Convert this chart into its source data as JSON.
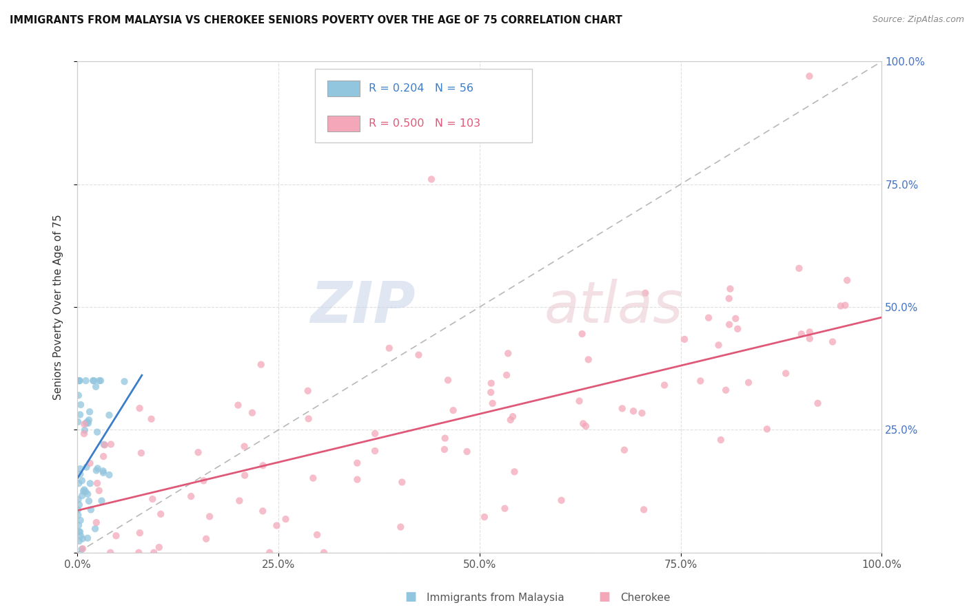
{
  "title": "IMMIGRANTS FROM MALAYSIA VS CHEROKEE SENIORS POVERTY OVER THE AGE OF 75 CORRELATION CHART",
  "source": "Source: ZipAtlas.com",
  "ylabel": "Seniors Poverty Over the Age of 75",
  "blue_R": 0.204,
  "blue_N": 56,
  "pink_R": 0.5,
  "pink_N": 103,
  "blue_color": "#92c5de",
  "pink_color": "#f4a7b9",
  "blue_line_color": "#3a7dc9",
  "pink_line_color": "#e05878",
  "xlim": [
    0,
    1.0
  ],
  "ylim": [
    0,
    1.0
  ],
  "xticks": [
    0.0,
    0.25,
    0.5,
    0.75,
    1.0
  ],
  "xticklabels": [
    "0.0%",
    "25.0%",
    "50.0%",
    "75.0%",
    "100.0%"
  ],
  "yticks": [
    0.0,
    0.25,
    0.5,
    0.75,
    1.0
  ],
  "right_yticklabels": [
    "",
    "25.0%",
    "50.0%",
    "75.0%",
    "100.0%"
  ],
  "right_ylabel_color": "#4472c4",
  "legend_label_blue": "Immigrants from Malaysia",
  "legend_label_pink": "Cherokee"
}
